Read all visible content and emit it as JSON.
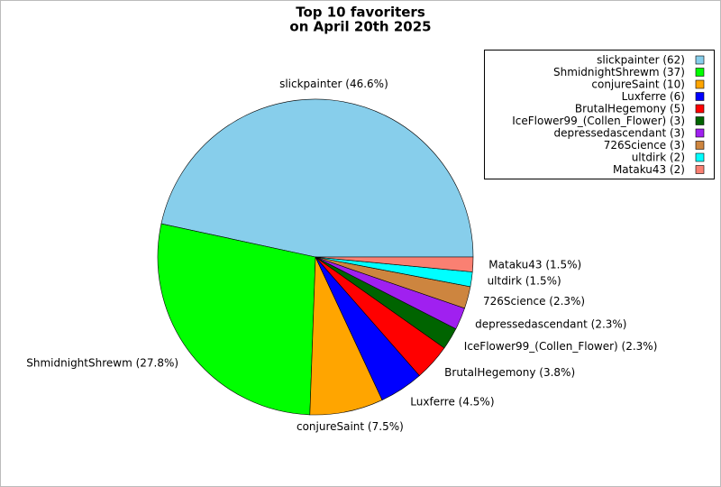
{
  "chart_data": {
    "type": "pie",
    "title": [
      "Top 10 favoriters",
      "on April 20th 2025"
    ],
    "categories": [
      "slickpainter",
      "ShmidnightShrewm",
      "conjureSaint",
      "Luxferre",
      "BrutalHegemony",
      "IceFlower99_(Collen_Flower)",
      "depressedascendant",
      "726Science",
      "ultdirk",
      "Mataku43"
    ],
    "values": [
      62,
      37,
      10,
      6,
      5,
      3,
      3,
      3,
      2,
      2
    ],
    "value_labels": [
      "slickpainter (46.6%)",
      "ShmidnightShrewm (27.8%)",
      "conjureSaint (7.5%)",
      "Luxferre (4.5%)",
      "BrutalHegemony (3.8%)",
      "IceFlower99_(Collen_Flower) (2.3%)",
      "depressedascendant (2.3%)",
      "726Science (2.3%)",
      "ultdirk (1.5%)",
      "Mataku43 (1.5%)"
    ],
    "legend_labels": [
      "slickpainter (62)",
      "ShmidnightShrewm (37)",
      "conjureSaint (10)",
      "Luxferre (6)",
      "BrutalHegemony (5)",
      "IceFlower99_(Collen_Flower) (3)",
      "depressedascendant (3)",
      "726Science (3)",
      "ultdirk (2)",
      "Mataku43 (2)"
    ],
    "colors": [
      "#87ceeb",
      "#00ff00",
      "#ffa500",
      "#0000ff",
      "#ff0000",
      "#006400",
      "#a020f0",
      "#cd853f",
      "#00ffff",
      "#fa8072"
    ],
    "legend": "upper right"
  }
}
